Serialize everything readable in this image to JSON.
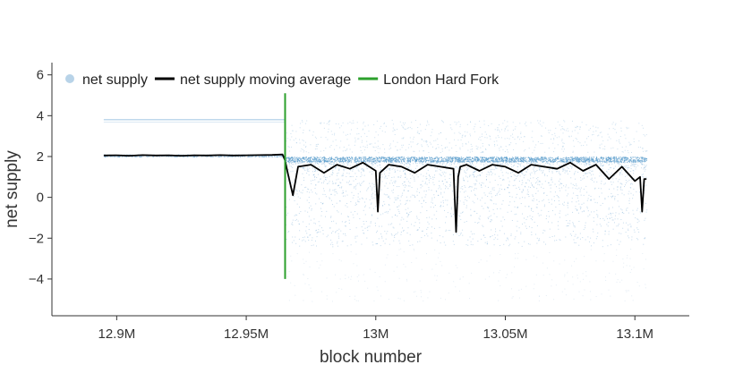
{
  "chart_data": {
    "type": "scatter",
    "xlabel": "block number",
    "ylabel": "net supply",
    "xlim": [
      12875000,
      13121000
    ],
    "ylim": [
      -5.8,
      6.6
    ],
    "x_ticks": [
      {
        "value": 12900000,
        "label": "12.9M"
      },
      {
        "value": 12950000,
        "label": "12.95M"
      },
      {
        "value": 13000000,
        "label": "13M"
      },
      {
        "value": 13050000,
        "label": "13.05M"
      },
      {
        "value": 13100000,
        "label": "13.1M"
      }
    ],
    "y_ticks": [
      {
        "value": 6,
        "label": "6"
      },
      {
        "value": 4,
        "label": "4"
      },
      {
        "value": 2,
        "label": "2"
      },
      {
        "value": 0,
        "label": "0"
      },
      {
        "value": -2,
        "label": "−2"
      },
      {
        "value": -4,
        "label": "−4"
      }
    ],
    "grid": false,
    "legend_position": "top-left",
    "legend": [
      {
        "name": "net supply",
        "type": "scatter",
        "color": "#b8d3e8"
      },
      {
        "name": "net supply moving average",
        "type": "line",
        "color": "#000000"
      },
      {
        "name": "London Hard Fork",
        "type": "vline",
        "color": "#2ca02c"
      }
    ],
    "series": [
      {
        "name": "net supply",
        "type": "scatter",
        "color": "#7fb0d8",
        "description_points": [
          [
            12895000,
            2.05
          ],
          [
            12920000,
            2.04
          ],
          [
            12940000,
            2.06
          ],
          [
            12960000,
            2.08
          ],
          [
            12895000,
            3.8
          ],
          [
            12930000,
            3.8
          ],
          [
            12962000,
            3.8
          ],
          [
            12970000,
            1.5
          ],
          [
            12990000,
            1.2
          ],
          [
            13010000,
            1.4
          ],
          [
            13030000,
            1.3
          ],
          [
            13050000,
            1.5
          ],
          [
            13070000,
            1.2
          ],
          [
            13090000,
            1.1
          ],
          [
            13104000,
            0.9
          ]
        ]
      },
      {
        "name": "net supply moving average",
        "type": "line",
        "color": "#000000",
        "x": [
          12895000,
          12900000,
          12905000,
          12910000,
          12915000,
          12920000,
          12925000,
          12930000,
          12935000,
          12940000,
          12945000,
          12950000,
          12955000,
          12960000,
          12964000,
          12965000,
          12966000,
          12968000,
          12970000,
          12975000,
          12980000,
          12985000,
          12990000,
          12995000,
          13000000,
          13000800,
          13001600,
          13005000,
          13010000,
          13015000,
          13020000,
          13025000,
          13030000,
          13031000,
          13031800,
          13032600,
          13035000,
          13040000,
          13045000,
          13050000,
          13055000,
          13060000,
          13065000,
          13070000,
          13075000,
          13080000,
          13085000,
          13090000,
          13095000,
          13100000,
          13102000,
          13102800,
          13103600,
          13104500
        ],
        "y": [
          2.05,
          2.06,
          2.04,
          2.07,
          2.05,
          2.06,
          2.04,
          2.06,
          2.05,
          2.07,
          2.05,
          2.06,
          2.07,
          2.08,
          2.1,
          1.8,
          1.2,
          0.1,
          1.5,
          1.6,
          1.2,
          1.6,
          1.4,
          1.7,
          1.3,
          -0.7,
          1.2,
          1.6,
          1.5,
          1.2,
          1.6,
          1.5,
          1.4,
          -1.7,
          1.0,
          1.5,
          1.6,
          1.3,
          1.6,
          1.5,
          1.2,
          1.6,
          1.5,
          1.4,
          1.7,
          1.3,
          1.6,
          0.9,
          1.5,
          0.8,
          1.0,
          -0.7,
          0.9,
          0.9
        ]
      },
      {
        "name": "London Hard Fork",
        "type": "vline",
        "color": "#2ca02c",
        "x": 12965000,
        "y_range": [
          -4,
          5.1
        ]
      }
    ]
  }
}
